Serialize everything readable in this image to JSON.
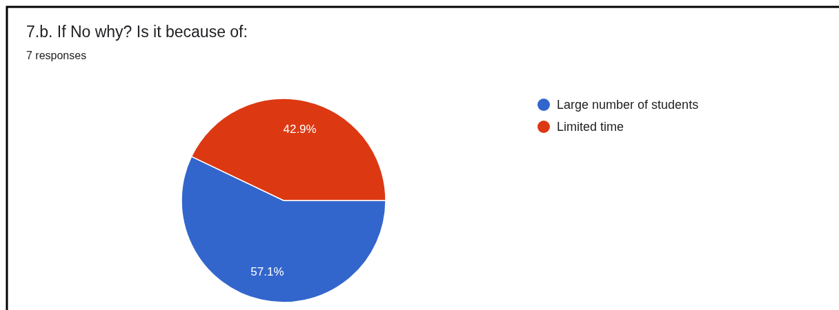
{
  "chart_data": {
    "type": "pie",
    "title": "7.b. If No why? Is it because of:",
    "subtitle": "7 responses",
    "categories": [
      "Large number of students",
      "Limited time"
    ],
    "values": [
      57.1,
      42.9
    ],
    "colors": [
      "#3366cc",
      "#dc3912"
    ],
    "value_labels": [
      "57.1%",
      "42.9%"
    ],
    "legend": "right"
  }
}
